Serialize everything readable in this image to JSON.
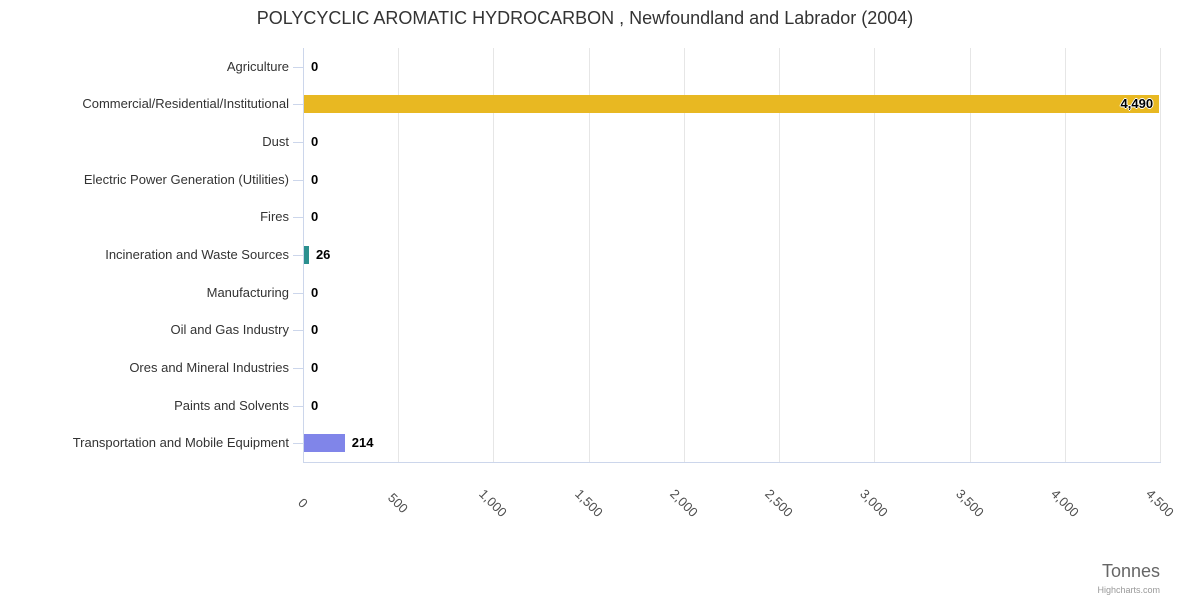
{
  "chart_data": {
    "type": "bar",
    "orientation": "horizontal",
    "title": "POLYCYCLIC AROMATIC HYDROCARBON , Newfoundland and Labrador (2004)",
    "xlabel": "Tonnes",
    "ylabel": "",
    "categories": [
      "Agriculture",
      "Commercial/Residential/Institutional",
      "Dust",
      "Electric Power Generation (Utilities)",
      "Fires",
      "Incineration and Waste Sources",
      "Manufacturing",
      "Oil and Gas Industry",
      "Ores and Mineral Industries",
      "Paints and Solvents",
      "Transportation and Mobile Equipment"
    ],
    "values": [
      0,
      4490,
      0,
      0,
      0,
      26,
      0,
      0,
      0,
      0,
      214
    ],
    "value_labels": [
      "0",
      "4,490",
      "0",
      "0",
      "0",
      "26",
      "0",
      "0",
      "0",
      "0",
      "214"
    ],
    "bar_colors": [
      null,
      "#e8b822",
      null,
      null,
      null,
      "#2b908f",
      null,
      null,
      null,
      null,
      "#8085e9"
    ],
    "xlim": [
      0,
      4500
    ],
    "x_ticks": [
      0,
      500,
      1000,
      1500,
      2000,
      2500,
      3000,
      3500,
      4000,
      4500
    ],
    "x_tick_labels": [
      "0",
      "500",
      "1,000",
      "1,500",
      "2,000",
      "2,500",
      "3,000",
      "3,500",
      "4,000",
      "4,500"
    ],
    "grid": true,
    "legend": "none",
    "credit": "Highcharts.com",
    "colors": {
      "grid": "#e6e6e6",
      "axis_line": "#ccd6eb",
      "title": "#333333",
      "category_label": "#333333",
      "value_label": "#000000",
      "x_tick_label": "#4d4d4d",
      "axis_title": "#666666",
      "credit": "#999999"
    }
  }
}
